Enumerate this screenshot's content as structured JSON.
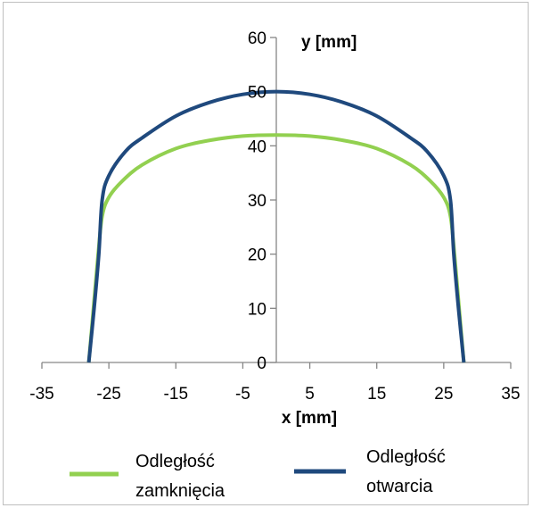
{
  "chart_data": {
    "type": "line",
    "xlabel": "x [mm]",
    "ylabel": "y [mm]",
    "xlim": [
      -35,
      35
    ],
    "ylim": [
      0,
      60
    ],
    "xticks": [
      "-35",
      "-25",
      "-15",
      "-5",
      "5",
      "15",
      "25",
      "35"
    ],
    "yticks": [
      "0",
      "10",
      "20",
      "30",
      "40",
      "50",
      "60"
    ],
    "grid": false,
    "legend_position": "bottom",
    "series": [
      {
        "name": "Odległość zamknięcia",
        "color": "#92d050",
        "points": [
          [
            -28,
            0
          ],
          [
            -27.3,
            10
          ],
          [
            -26.6,
            20
          ],
          [
            -26,
            27
          ],
          [
            -25,
            30.5
          ],
          [
            -23,
            33.5
          ],
          [
            -20,
            36.5
          ],
          [
            -15,
            39.5
          ],
          [
            -10,
            41
          ],
          [
            -5,
            41.8
          ],
          [
            0,
            42
          ],
          [
            5,
            41.8
          ],
          [
            10,
            41
          ],
          [
            15,
            39.5
          ],
          [
            20,
            36.5
          ],
          [
            23,
            33.5
          ],
          [
            25,
            30.5
          ],
          [
            26,
            27
          ],
          [
            26.6,
            20
          ],
          [
            27.3,
            10
          ],
          [
            28,
            0
          ]
        ]
      },
      {
        "name": "Odległość otwarcia",
        "color": "#1f497d",
        "points": [
          [
            -28,
            0
          ],
          [
            -27.2,
            10
          ],
          [
            -26.5,
            20
          ],
          [
            -26,
            30
          ],
          [
            -25,
            34.5
          ],
          [
            -22.5,
            39
          ],
          [
            -20,
            41.5
          ],
          [
            -15,
            45.5
          ],
          [
            -10,
            48
          ],
          [
            -5,
            49.5
          ],
          [
            0,
            50
          ],
          [
            5,
            49.5
          ],
          [
            10,
            48
          ],
          [
            15,
            45.5
          ],
          [
            20,
            41.5
          ],
          [
            22.5,
            39
          ],
          [
            25,
            34.5
          ],
          [
            26,
            30
          ],
          [
            26.5,
            20
          ],
          [
            27.2,
            10
          ],
          [
            28,
            0
          ]
        ]
      }
    ]
  }
}
